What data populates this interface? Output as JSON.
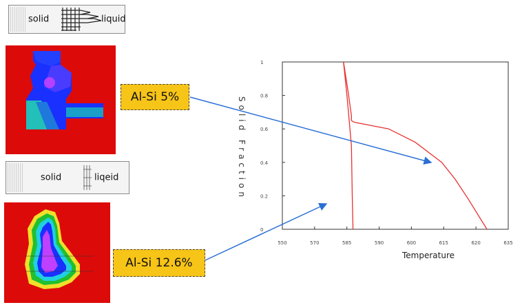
{
  "legend_top": {
    "solid_label": "solid",
    "liquid_label": "liquid"
  },
  "legend_bottom": {
    "solid_label": "solid",
    "liquid_label": "liqeid"
  },
  "callouts": {
    "al_si_5": "Al-Si 5%",
    "al_si_12_6": "Al-Si 12.6%"
  },
  "colors": {
    "mold": "#dd0a0a",
    "callout": "#f7c418",
    "arrow": "#2a6fd6",
    "curve": "#e83030"
  },
  "chart_data": {
    "type": "line",
    "xlabel": "Temperature",
    "ylabel": "Solid Fraction",
    "xlim": [
      550,
      635
    ],
    "ylim": [
      0,
      1
    ],
    "x_ticks": [
      "550",
      "570",
      "585",
      "590",
      "600",
      "615",
      "620",
      "635"
    ],
    "y_ticks": [
      "0",
      "0.2",
      "0.4",
      "0.6",
      "0.8",
      "1"
    ],
    "series": [
      {
        "x": [
          573,
          574.5,
          576,
          576,
          577,
          590,
          600,
          610,
          615,
          620,
          627
        ],
        "y": [
          1,
          0.85,
          0.68,
          0.65,
          0.64,
          0.6,
          0.52,
          0.4,
          0.3,
          0.18,
          0
        ]
      },
      {
        "x": [
          573,
          574.3,
          576,
          576.3,
          576.6
        ],
        "y": [
          1,
          0.8,
          0.5,
          0.2,
          0
        ]
      }
    ]
  }
}
